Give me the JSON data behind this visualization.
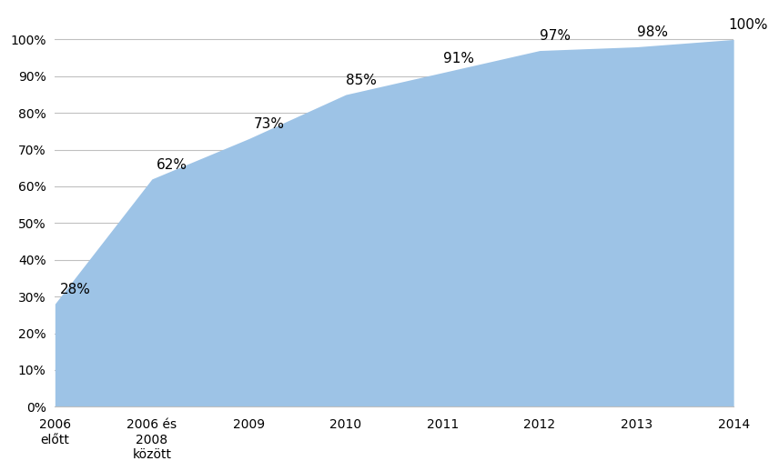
{
  "categories": [
    "2006\nelőtt",
    "2006 és\n2008\nközött",
    "2009",
    "2010",
    "2011",
    "2012",
    "2013",
    "2014"
  ],
  "values": [
    28,
    62,
    73,
    85,
    91,
    97,
    98,
    100
  ],
  "labels": [
    "28%",
    "62%",
    "73%",
    "85%",
    "91%",
    "97%",
    "98%",
    "100%"
  ],
  "fill_color": "#9DC3E6",
  "background_color": "#FFFFFF",
  "yticks": [
    0,
    10,
    20,
    30,
    40,
    50,
    60,
    70,
    80,
    90,
    100
  ],
  "ytick_labels": [
    "0%",
    "10%",
    "20%",
    "30%",
    "40%",
    "50%",
    "60%",
    "70%",
    "80%",
    "90%",
    "100%"
  ],
  "ylim": [
    0,
    108
  ],
  "grid_color": "#C0C0C0",
  "label_fontsize": 11,
  "tick_fontsize": 10,
  "label_offsets_x": [
    0.05,
    0.05,
    0.05,
    0.0,
    0.0,
    0.0,
    0.0,
    -0.05
  ],
  "label_offsets_y": [
    2,
    2,
    2,
    2,
    2,
    2,
    2,
    2
  ]
}
